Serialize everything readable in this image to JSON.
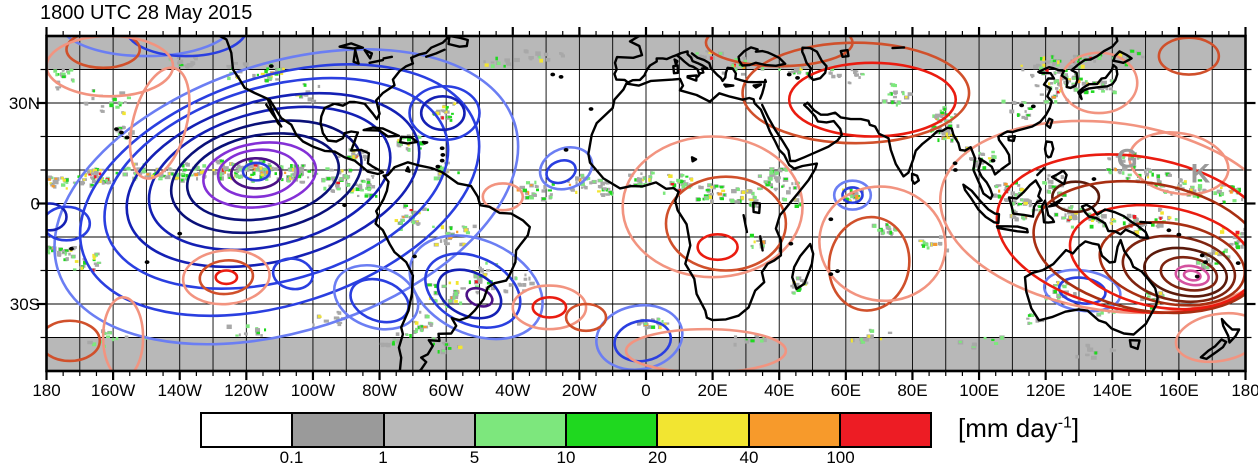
{
  "title": "1800 UTC 28 May 2015",
  "axes": {
    "lon_range": [
      -180,
      180
    ],
    "lat_range": [
      -50,
      50
    ],
    "lon_major_step": 20,
    "lon_minor_step": 5,
    "lat_minor_step": 10,
    "grid_step_deg": 10,
    "lon_tick_labels": [
      {
        "deg": -180,
        "label": "180"
      },
      {
        "deg": -160,
        "label": "160W"
      },
      {
        "deg": -140,
        "label": "140W"
      },
      {
        "deg": -120,
        "label": "120W"
      },
      {
        "deg": -100,
        "label": "100W"
      },
      {
        "deg": -80,
        "label": "80W"
      },
      {
        "deg": -60,
        "label": "60W"
      },
      {
        "deg": -40,
        "label": "40W"
      },
      {
        "deg": -20,
        "label": "20W"
      },
      {
        "deg": 0,
        "label": "0"
      },
      {
        "deg": 20,
        "label": "20E"
      },
      {
        "deg": 40,
        "label": "40E"
      },
      {
        "deg": 60,
        "label": "60E"
      },
      {
        "deg": 80,
        "label": "80E"
      },
      {
        "deg": 100,
        "label": "100E"
      },
      {
        "deg": 120,
        "label": "120E"
      },
      {
        "deg": 140,
        "label": "140E"
      },
      {
        "deg": 160,
        "label": "160E"
      },
      {
        "deg": 180,
        "label": "180"
      }
    ],
    "lat_tick_labels": [
      {
        "deg": 30,
        "label": "30N"
      },
      {
        "deg": 0,
        "label": "0"
      },
      {
        "deg": -30,
        "label": "30S"
      }
    ]
  },
  "colorbar": {
    "unit_prefix": "[mm day",
    "unit_sup": "-1",
    "unit_suffix": "]",
    "boundary_labels": [
      "0.1",
      "1",
      "5",
      "10",
      "20",
      "40",
      "100"
    ],
    "segment_colors": [
      "#ffffff",
      "#9a9a9a",
      "#b8b8b8",
      "#7de77d",
      "#1fd81f",
      "#f2e531",
      "#f79a2b",
      "#ed1c24"
    ]
  },
  "chart_data": {
    "type": "heatmap",
    "subtype": "global map: shaded precipitation + anomaly contours",
    "title": "1800 UTC 28 May 2015",
    "projection": "equirectangular",
    "lon_range": [
      -180,
      180
    ],
    "lat_range": [
      -50,
      50
    ],
    "grid": "on, 10 deg",
    "no_data_band_color": "#b8b8b8",
    "no_data_bands_lat": [
      [
        40,
        50
      ],
      [
        -50,
        -40
      ]
    ],
    "shading": {
      "quantity": "precipitation rate",
      "unit": "mm day-1",
      "levels": [
        0.1,
        1,
        5,
        10,
        20,
        40,
        100
      ],
      "colors": [
        "#ffffff",
        "#9a9a9a",
        "#b8b8b8",
        "#7de77d",
        "#1fd81f",
        "#f2e531",
        "#f79a2b",
        "#ed1c24"
      ]
    },
    "contour_palette": {
      "lightblue": "#6b7ef3",
      "blue": "#2a3fe0",
      "navy": "#1420b4",
      "darknavy": "#0a1078",
      "purple": "#8430d6",
      "darkpurple": "#4c1187",
      "salmon": "#f29480",
      "orangered": "#d0502b",
      "red": "#ea1c10",
      "darkred": "#a82f12",
      "brown": "#7e2410",
      "darkbrown": "#5a1a0b",
      "magenta": "#d4519f"
    },
    "contours": [
      [
        -108,
        2,
        72,
        40,
        -18,
        "lightblue"
      ],
      [
        -110,
        4,
        62,
        34,
        -18,
        "blue"
      ],
      [
        -111,
        6,
        53,
        29,
        -16,
        "blue"
      ],
      [
        -112,
        7,
        45,
        24,
        -15,
        "navy"
      ],
      [
        -113,
        7.5,
        37,
        20,
        -14,
        "navy"
      ],
      [
        -114,
        8,
        29,
        16,
        -12,
        "darknavy"
      ],
      [
        -115,
        8,
        23,
        12.5,
        -10,
        "darknavy"
      ],
      [
        -116,
        8.5,
        17,
        9.5,
        -8,
        "purple"
      ],
      [
        -116.5,
        9,
        12,
        7,
        -5,
        "purple"
      ],
      [
        -117,
        9,
        7.5,
        4.5,
        0,
        "darkpurple"
      ],
      [
        -117,
        9.5,
        4,
        2.6,
        0,
        "blue"
      ],
      [
        -53,
        -27,
        10,
        6.5,
        25,
        "navy"
      ],
      [
        -52,
        -26,
        15,
        10,
        25,
        "blue"
      ],
      [
        -51,
        -25,
        21,
        14,
        25,
        "lightblue"
      ],
      [
        -50,
        -28,
        4,
        2.5,
        20,
        "darkpurple"
      ],
      [
        62,
        2.5,
        5.5,
        4.3,
        0,
        "lightblue"
      ],
      [
        62,
        2.5,
        3,
        2.3,
        0,
        "blue"
      ],
      [
        131,
        -26,
        7,
        3.8,
        8,
        "blue"
      ],
      [
        131,
        -26,
        11.5,
        6,
        8,
        "lightblue"
      ],
      [
        -1,
        -41,
        8.5,
        6,
        -10,
        "blue"
      ],
      [
        -2,
        -40,
        13,
        9.5,
        -10,
        "lightblue"
      ],
      [
        -150,
        54,
        26,
        10,
        0,
        "lightblue"
      ],
      [
        -138,
        52,
        18,
        8,
        0,
        "blue"
      ],
      [
        -24,
        10.5,
        8,
        6,
        -20,
        "lightblue"
      ],
      [
        -25.5,
        9.5,
        4.5,
        3.2,
        -20,
        "blue"
      ],
      [
        -179,
        -4,
        5,
        4,
        0,
        "navy"
      ],
      [
        -174,
        -6,
        7,
        5,
        0,
        "blue"
      ],
      [
        -106,
        -21,
        6,
        4.5,
        10,
        "blue"
      ],
      [
        -80,
        -29,
        9,
        6,
        20,
        "blue"
      ],
      [
        -81,
        -28,
        13,
        9,
        20,
        "lightblue"
      ],
      [
        -61,
        27,
        6.5,
        5,
        0,
        "navy"
      ],
      [
        -60.5,
        27,
        10.5,
        8,
        0,
        "blue"
      ],
      [
        -163,
        46,
        11,
        5.5,
        0,
        "orangered"
      ],
      [
        -161,
        41,
        19,
        9,
        0,
        "salmon"
      ],
      [
        -146,
        24,
        8,
        17,
        15,
        "salmon"
      ],
      [
        -126,
        -22,
        13,
        8,
        -5,
        "salmon"
      ],
      [
        -126,
        -22,
        8,
        5,
        -5,
        "orangered"
      ],
      [
        -126,
        -22,
        3.2,
        2,
        0,
        "red"
      ],
      [
        -157,
        -40,
        6,
        12,
        0,
        "salmon"
      ],
      [
        -173,
        -41,
        9,
        6,
        0,
        "orangered"
      ],
      [
        -29,
        -31,
        11,
        6.5,
        0,
        "salmon"
      ],
      [
        -29,
        -31,
        5,
        3,
        0,
        "red"
      ],
      [
        -43,
        2,
        6,
        4,
        0,
        "salmon"
      ],
      [
        20,
        -1,
        27,
        21,
        0,
        "salmon"
      ],
      [
        24,
        -6,
        18,
        14,
        0,
        "orangered"
      ],
      [
        21.5,
        -13,
        6,
        3.8,
        0,
        "red"
      ],
      [
        -18,
        -34,
        6,
        4,
        0,
        "orangered"
      ],
      [
        18,
        -44,
        24,
        6.5,
        0,
        "salmon"
      ],
      [
        63,
        33,
        34,
        15,
        0,
        "orangered"
      ],
      [
        68,
        31,
        25,
        11,
        0,
        "red"
      ],
      [
        40,
        48,
        22,
        7,
        0,
        "orangered"
      ],
      [
        67,
        -18,
        12,
        14,
        10,
        "orangered"
      ],
      [
        71,
        -12,
        19,
        17,
        10,
        "salmon"
      ],
      [
        136,
        36,
        11.5,
        9,
        0,
        "salmon"
      ],
      [
        163,
        44,
        9,
        5.5,
        0,
        "orangered"
      ],
      [
        160,
        12,
        15,
        9,
        10,
        "salmon"
      ],
      [
        129,
        2,
        7,
        4.5,
        0,
        "darkbrown"
      ],
      [
        140,
        -4,
        52,
        28,
        8,
        "salmon"
      ],
      [
        147,
        -9,
        42,
        23,
        9,
        "red"
      ],
      [
        151,
        -13,
        35,
        19,
        10,
        "darkred"
      ],
      [
        155,
        -16,
        28,
        15,
        10,
        "red"
      ],
      [
        158,
        -18,
        22,
        12,
        10,
        "darkred"
      ],
      [
        160,
        -19.5,
        17,
        9.5,
        10,
        "brown"
      ],
      [
        162,
        -20.5,
        12.5,
        7,
        10,
        "darkbrown"
      ],
      [
        163,
        -21,
        8.5,
        4.8,
        10,
        "brown"
      ],
      [
        164,
        -21.5,
        5,
        2.8,
        10,
        "magenta"
      ],
      [
        164,
        -21.5,
        2.5,
        1.4,
        10,
        "magenta"
      ],
      [
        172,
        -40,
        13,
        7,
        -10,
        "salmon"
      ]
    ],
    "precip_clusters": [
      [
        -178,
        7,
        28,
        6,
        3,
        1
      ],
      [
        -165,
        8,
        34,
        8,
        3,
        1
      ],
      [
        -150,
        9,
        30,
        8,
        3,
        1
      ],
      [
        -138,
        9,
        28,
        7,
        3,
        1
      ],
      [
        -126,
        10,
        38,
        6,
        3,
        1
      ],
      [
        -117,
        10,
        46,
        6,
        4,
        1
      ],
      [
        -105,
        9,
        34,
        7,
        3,
        1
      ],
      [
        -93,
        7,
        28,
        6,
        4,
        1
      ],
      [
        -85,
        5,
        24,
        5,
        4,
        1
      ],
      [
        -160,
        30,
        16,
        9,
        4,
        0
      ],
      [
        -175,
        38,
        14,
        8,
        4,
        0
      ],
      [
        -140,
        42,
        12,
        8,
        3,
        0
      ],
      [
        -122,
        40,
        10,
        6,
        3,
        0
      ],
      [
        -155,
        21,
        10,
        5,
        2,
        0
      ],
      [
        -113,
        39,
        18,
        5,
        3,
        1
      ],
      [
        -88,
        14,
        18,
        6,
        3,
        1
      ],
      [
        -72,
        18,
        16,
        7,
        3,
        1
      ],
      [
        -61,
        27,
        16,
        4,
        3,
        1
      ],
      [
        -60,
        10,
        14,
        5,
        3,
        1
      ],
      [
        -70,
        -4,
        24,
        7,
        4,
        1
      ],
      [
        -58,
        -10,
        18,
        8,
        5,
        1
      ],
      [
        -50,
        -22,
        22,
        6,
        5,
        1
      ],
      [
        -60,
        -28,
        22,
        7,
        5,
        1
      ],
      [
        -68,
        -36,
        14,
        5,
        4,
        1
      ],
      [
        -75,
        -41,
        10,
        5,
        3,
        0
      ],
      [
        -38,
        -24,
        10,
        6,
        4,
        0
      ],
      [
        -160,
        -40,
        12,
        10,
        3,
        0
      ],
      [
        -120,
        -38,
        10,
        9,
        3,
        0
      ],
      [
        -95,
        -35,
        9,
        8,
        3,
        0
      ],
      [
        -60,
        -43,
        9,
        7,
        3,
        0
      ],
      [
        -175,
        -14,
        22,
        6,
        4,
        1
      ],
      [
        -167,
        -18,
        16,
        6,
        4,
        1
      ],
      [
        178,
        -10,
        18,
        6,
        4,
        1
      ],
      [
        170,
        -16,
        20,
        6,
        4,
        1
      ],
      [
        -35,
        4,
        22,
        8,
        3,
        1
      ],
      [
        -20,
        6,
        18,
        6,
        3,
        1
      ],
      [
        -12,
        5,
        13,
        4,
        3,
        1
      ],
      [
        0,
        7,
        18,
        6,
        3,
        1
      ],
      [
        10,
        6,
        18,
        6,
        3,
        1
      ],
      [
        20,
        4,
        22,
        7,
        4,
        1
      ],
      [
        30,
        2,
        18,
        6,
        4,
        1
      ],
      [
        38,
        8,
        26,
        6,
        4,
        1
      ],
      [
        44,
        3,
        13,
        4,
        4,
        1
      ],
      [
        34,
        -12,
        9,
        4,
        3,
        1
      ],
      [
        45,
        -24,
        13,
        4,
        3,
        1
      ],
      [
        0,
        -36,
        14,
        8,
        2,
        1
      ],
      [
        28,
        41,
        16,
        8,
        3,
        1
      ],
      [
        45,
        40,
        13,
        7,
        3,
        1
      ],
      [
        18,
        44,
        9,
        6,
        2,
        1
      ],
      [
        60,
        38,
        10,
        7,
        3,
        0
      ],
      [
        75,
        33,
        13,
        6,
        4,
        1
      ],
      [
        88,
        26,
        18,
        6,
        3,
        1
      ],
      [
        90,
        21,
        22,
        5,
        3,
        1
      ],
      [
        62,
        2,
        18,
        4,
        3,
        1
      ],
      [
        72,
        -8,
        13,
        6,
        3,
        1
      ],
      [
        85,
        -12,
        10,
        6,
        3,
        1
      ],
      [
        100,
        14,
        18,
        6,
        4,
        1
      ],
      [
        108,
        4,
        18,
        6,
        4,
        1
      ],
      [
        114,
        -2,
        22,
        7,
        4,
        1
      ],
      [
        122,
        6,
        18,
        5,
        4,
        1
      ],
      [
        128,
        -4,
        18,
        6,
        4,
        1
      ],
      [
        136,
        -4,
        18,
        6,
        3,
        1
      ],
      [
        146,
        -6,
        18,
        6,
        4,
        1
      ],
      [
        112,
        28,
        13,
        7,
        4,
        0
      ],
      [
        122,
        34,
        18,
        6,
        4,
        1
      ],
      [
        128,
        36,
        26,
        6,
        4,
        1
      ],
      [
        137,
        35,
        18,
        6,
        3,
        1
      ],
      [
        118,
        41,
        22,
        8,
        4,
        1
      ],
      [
        130,
        43,
        18,
        7,
        3,
        1
      ],
      [
        146,
        44,
        10,
        6,
        3,
        0
      ],
      [
        142,
        12,
        18,
        7,
        4,
        1
      ],
      [
        152,
        8,
        22,
        8,
        4,
        1
      ],
      [
        163,
        5,
        22,
        8,
        4,
        1
      ],
      [
        175,
        3,
        18,
        7,
        4,
        1
      ],
      [
        155,
        -5,
        13,
        6,
        4,
        1
      ],
      [
        125,
        -27,
        13,
        6,
        4,
        1
      ],
      [
        140,
        -32,
        9,
        6,
        4,
        0
      ],
      [
        152,
        -28,
        10,
        4,
        4,
        1
      ],
      [
        115,
        -34,
        7,
        4,
        3,
        0
      ],
      [
        70,
        -40,
        10,
        9,
        3,
        0
      ],
      [
        100,
        -42,
        10,
        9,
        3,
        0
      ],
      [
        135,
        -44,
        9,
        8,
        3,
        0
      ],
      [
        30,
        -41,
        9,
        8,
        3,
        0
      ],
      [
        -45,
        42,
        10,
        8,
        3,
        0
      ],
      [
        -30,
        45,
        9,
        7,
        3,
        0
      ],
      [
        -100,
        33,
        9,
        6,
        3,
        0
      ]
    ],
    "annotations": [
      {
        "text": "G",
        "lon": 144.5,
        "lat": 13.5
      },
      {
        "text": "K",
        "lon": 166.5,
        "lat": 9.0
      }
    ]
  }
}
